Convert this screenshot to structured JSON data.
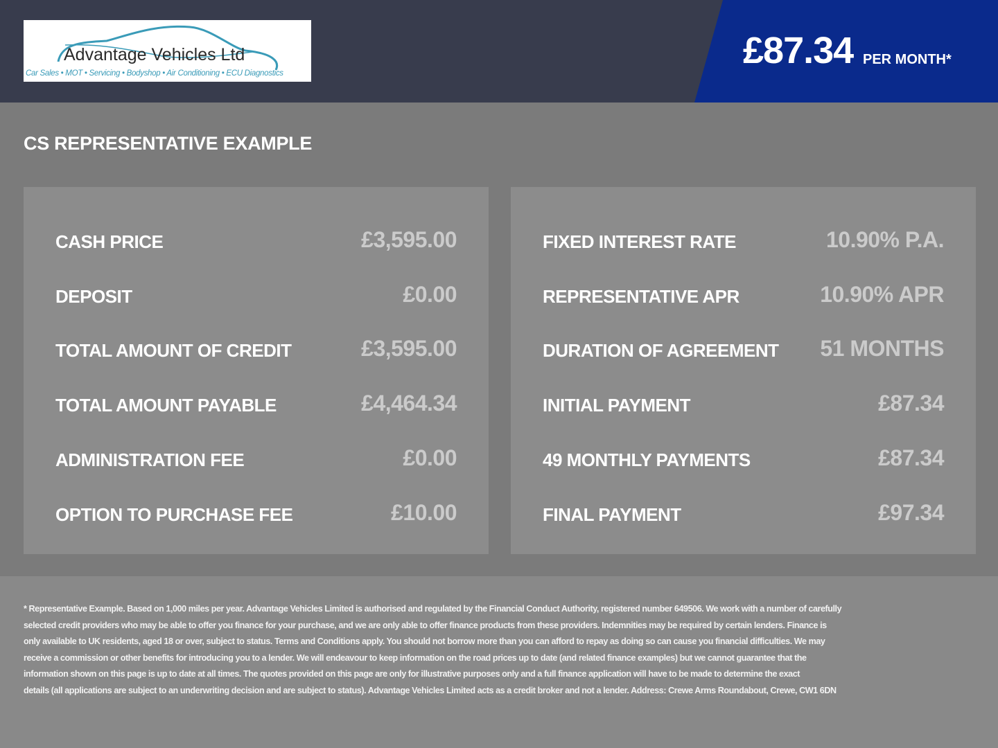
{
  "header": {
    "logo": {
      "name": "Advantage Vehicles Ltd",
      "tagline": "Car Sales • MOT • Servicing • Bodyshop • Air Conditioning • ECU Diagnostics"
    },
    "price": "£87.34",
    "per_month": "PER MONTH*"
  },
  "colors": {
    "header_bg": "#383c4d",
    "accent": "#0a2a8c",
    "page_bg": "#7b7b7b",
    "panel_bg": "#8c8c8c"
  },
  "main": {
    "title": "CS REPRESENTATIVE EXAMPLE",
    "left": [
      {
        "label": "CASH PRICE",
        "value": "£3,595.00"
      },
      {
        "label": "DEPOSIT",
        "value": "£0.00"
      },
      {
        "label": "TOTAL AMOUNT OF CREDIT",
        "value": "£3,595.00"
      },
      {
        "label": "TOTAL AMOUNT PAYABLE",
        "value": "£4,464.34"
      },
      {
        "label": "ADMINISTRATION FEE",
        "value": "£0.00"
      },
      {
        "label": "OPTION TO PURCHASE FEE",
        "value": "£10.00"
      }
    ],
    "right": [
      {
        "label": "FIXED INTEREST RATE",
        "value": "10.90% P.A."
      },
      {
        "label": "REPRESENTATIVE APR",
        "value": "10.90% APR"
      },
      {
        "label": "DURATION OF AGREEMENT",
        "value": "51 MONTHS"
      },
      {
        "label": "INITIAL PAYMENT",
        "value": "£87.34"
      },
      {
        "label": "49 MONTHLY PAYMENTS",
        "value": "£87.34"
      },
      {
        "label": "FINAL PAYMENT",
        "value": "£97.34"
      }
    ]
  },
  "footer": {
    "lines": [
      "* Representative Example. Based on 1,000 miles per year. Advantage Vehicles Limited is authorised and regulated by the Financial Conduct Authority, registered number 649506. We work with a number of carefully",
      "selected credit providers who may be able to offer you finance for your purchase, and we are only able to offer finance products from these providers. Indemnities may be required by certain lenders. Finance is",
      "only available to UK residents, aged 18 or over, subject to status. Terms and Conditions apply. You should not borrow more than you can afford to repay as doing so can cause you financial difficulties. We may",
      "receive a commission or other benefits for introducing you to a lender. We will endeavour to keep information on the road prices up to date (and related finance examples) but we cannot guarantee that the",
      "information shown on this page is up to date at all times. The quotes provided on this page are only for illustrative purposes only and a full finance application will have to be made to determine the exact",
      "details (all applications are subject to an underwriting decision and are subject to status). Advantage Vehicles Limited acts as a credit broker and not a lender. Address: Crewe Arms Roundabout, Crewe, CW1 6DN"
    ]
  }
}
